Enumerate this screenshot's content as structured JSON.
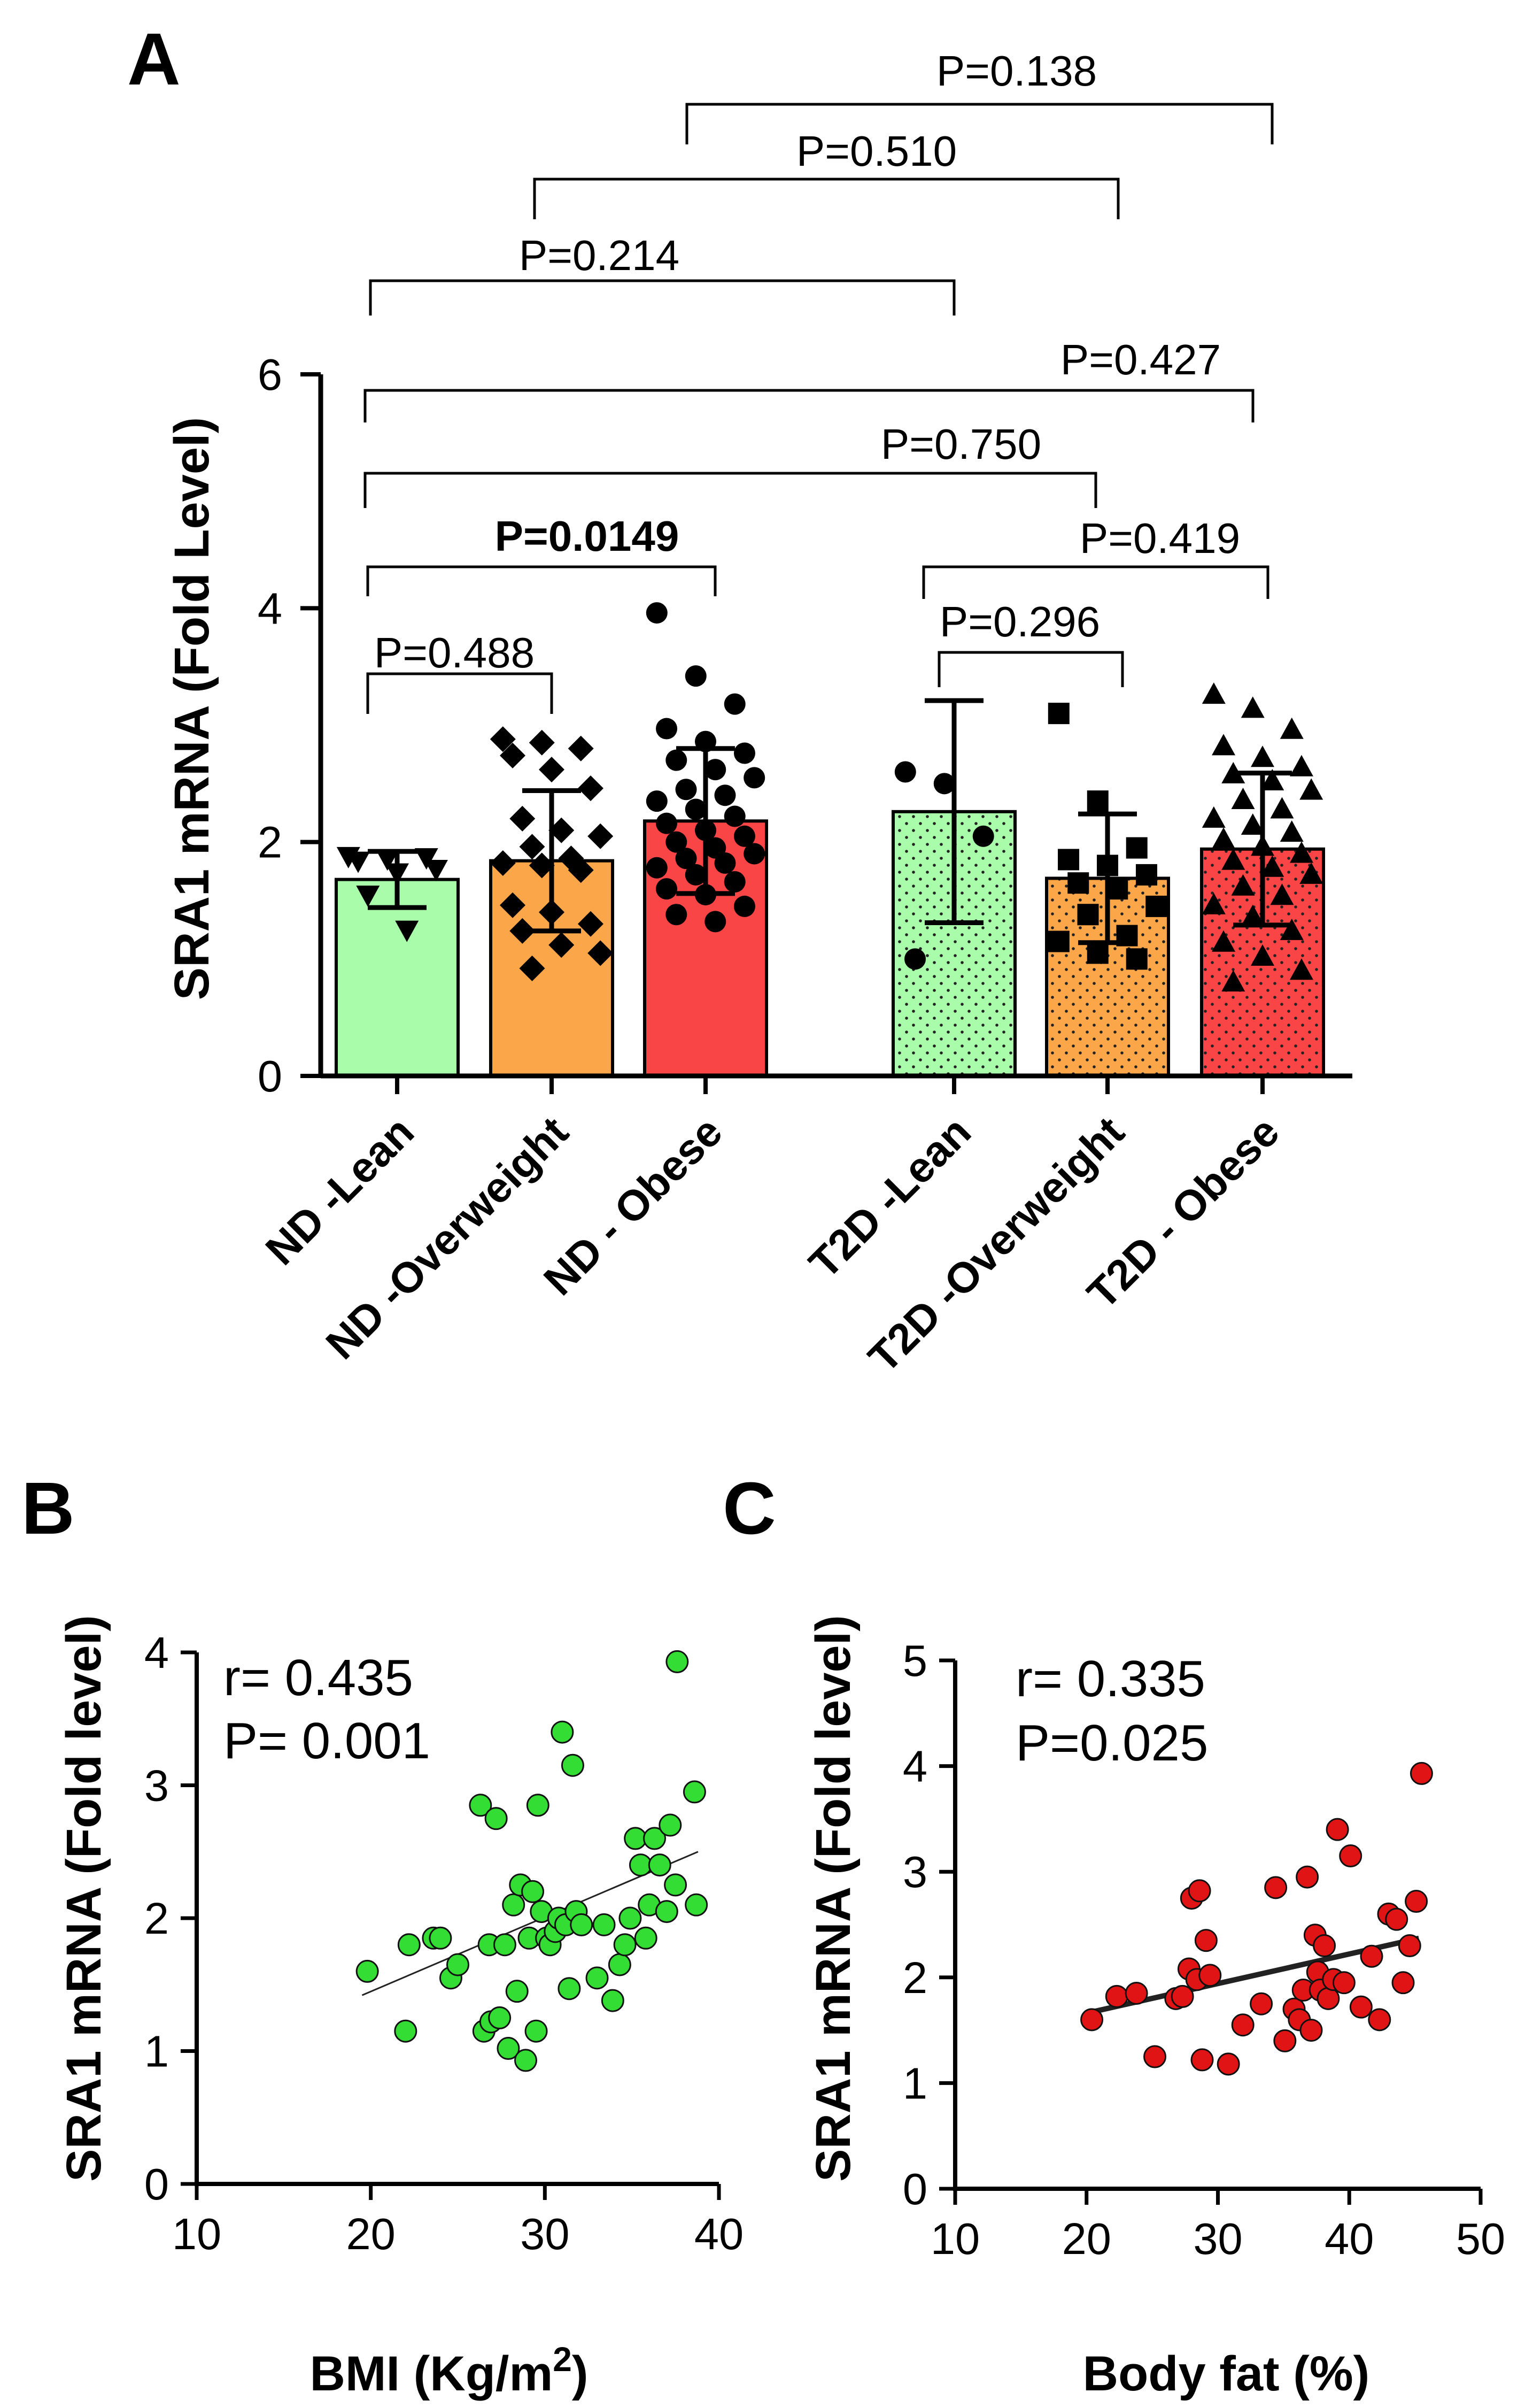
{
  "panels": {
    "a": "A",
    "b": "B",
    "c": "C"
  },
  "colors": {
    "lean": "#a9fca9",
    "overweight": "#fca64a",
    "obese": "#f94545",
    "green_dot": "#33dd33",
    "red_dot": "#e01414",
    "axis": "#000000"
  },
  "chart_data": [
    {
      "panel": "A",
      "type": "bar",
      "ylabel": "SRA1 mRNA (Fold Level)",
      "ylim": [
        0,
        6
      ],
      "yticks": [
        "0",
        "2",
        "4",
        "6"
      ],
      "categories": [
        "ND -Lean",
        "ND -Overweight",
        "ND - Obese",
        "T2D -Lean",
        "T2D -Overweight",
        "T2D - Obese"
      ],
      "bars": [
        {
          "name": "ND -Lean",
          "mean": 1.68,
          "sd": 0.24,
          "color": "lean",
          "pattern": "solid",
          "marker": "triangle-down",
          "points": [
            1.88,
            1.86,
            1.87,
            1.84,
            1.74,
            1.77,
            1.55,
            1.25
          ]
        },
        {
          "name": "ND -Overweight",
          "mean": 1.84,
          "sd": 0.6,
          "color": "overweight",
          "pattern": "solid",
          "marker": "diamond",
          "points": [
            2.88,
            2.85,
            2.8,
            2.74,
            2.62,
            2.46,
            2.2,
            2.1,
            2.05,
            1.96,
            1.86,
            1.82,
            1.8,
            1.76,
            1.46,
            1.4,
            1.3,
            1.24,
            1.12,
            1.05,
            0.92
          ]
        },
        {
          "name": "ND - Obese",
          "mean": 2.18,
          "sd": 0.62,
          "color": "obese",
          "pattern": "solid",
          "marker": "circle",
          "points": [
            3.96,
            3.42,
            3.18,
            2.97,
            2.86,
            2.76,
            2.7,
            2.62,
            2.55,
            2.45,
            2.4,
            2.35,
            2.28,
            2.22,
            2.16,
            2.1,
            2.05,
            2.0,
            1.95,
            1.9,
            1.86,
            1.82,
            1.78,
            1.72,
            1.66,
            1.6,
            1.55,
            1.45,
            1.38,
            1.32
          ]
        },
        {
          "name": "T2D -Lean",
          "mean": 2.26,
          "sd": 0.95,
          "color": "lean",
          "pattern": "dots",
          "marker": "circle",
          "points": [
            2.6,
            2.5,
            2.05,
            1.0
          ]
        },
        {
          "name": "T2D -Overweight",
          "mean": 1.69,
          "sd": 0.55,
          "color": "overweight",
          "pattern": "dots",
          "marker": "square",
          "points": [
            3.1,
            2.35,
            1.95,
            1.85,
            1.8,
            1.72,
            1.65,
            1.6,
            1.45,
            1.38,
            1.2,
            1.15,
            1.05,
            1.0
          ]
        },
        {
          "name": "T2D - Obese",
          "mean": 1.94,
          "sd": 0.65,
          "color": "obese",
          "pattern": "dots",
          "marker": "triangle",
          "points": [
            3.26,
            3.14,
            2.96,
            2.82,
            2.72,
            2.64,
            2.58,
            2.52,
            2.44,
            2.36,
            2.28,
            2.2,
            2.14,
            2.08,
            2.02,
            1.96,
            1.9,
            1.84,
            1.78,
            1.72,
            1.62,
            1.54,
            1.46,
            1.36,
            1.24,
            1.14,
            1.02,
            0.9,
            0.8
          ]
        }
      ],
      "comparisons": [
        {
          "from": 0,
          "to": 1,
          "label": "P=0.488",
          "bold": false
        },
        {
          "from": 0,
          "to": 2,
          "label": "P=0.0149",
          "bold": true
        },
        {
          "from": 3,
          "to": 4,
          "label": "P=0.296",
          "bold": false
        },
        {
          "from": 3,
          "to": 5,
          "label": "P=0.419",
          "bold": false
        },
        {
          "from": 0,
          "to": 4,
          "label": "P=0.750",
          "bold": false
        },
        {
          "from": 0,
          "to": 5,
          "label": "P=0.427",
          "bold": false
        },
        {
          "from": 0,
          "to": 3,
          "label": "P=0.214",
          "bold": false
        },
        {
          "from": 1,
          "to": 4,
          "label": "P=0.510",
          "bold": false
        },
        {
          "from": 2,
          "to": 5,
          "label": "P=0.138",
          "bold": false
        }
      ]
    },
    {
      "panel": "B",
      "type": "scatter",
      "xlabel": "BMI (Kg/m",
      "xlabel_sup": "2",
      "xlabel_end": ")",
      "ylabel": "SRA1 mRNA (Fold level)",
      "xlim": [
        10,
        40
      ],
      "ylim": [
        0,
        4
      ],
      "xticks": [
        "10",
        "20",
        "30",
        "40"
      ],
      "yticks": [
        "0",
        "1",
        "2",
        "3",
        "4"
      ],
      "r_label": "r= 0.435",
      "p_label": "P= 0.001",
      "trend": {
        "x": [
          19.5,
          38.8
        ],
        "y": [
          1.42,
          2.5
        ]
      },
      "x": [
        19.8,
        22.0,
        22.2,
        23.6,
        24.0,
        24.6,
        25.0,
        26.3,
        26.5,
        26.8,
        26.9,
        27.2,
        27.4,
        27.7,
        27.9,
        28.2,
        28.4,
        28.6,
        28.9,
        29.1,
        29.3,
        29.5,
        29.6,
        29.8,
        30.1,
        30.3,
        30.6,
        30.8,
        31.0,
        31.2,
        31.4,
        31.6,
        31.8,
        32.1,
        33.0,
        33.4,
        33.9,
        34.3,
        34.6,
        34.9,
        35.2,
        35.5,
        35.8,
        36.0,
        36.3,
        36.6,
        37.0,
        37.2,
        37.5,
        37.6,
        38.6,
        38.7
      ],
      "y": [
        1.6,
        1.15,
        1.8,
        1.85,
        1.85,
        1.55,
        1.65,
        2.85,
        1.15,
        1.8,
        1.22,
        2.75,
        1.25,
        1.8,
        1.02,
        2.1,
        1.45,
        2.25,
        0.93,
        1.85,
        2.2,
        1.15,
        2.85,
        2.05,
        1.85,
        1.8,
        1.9,
        2.0,
        3.4,
        1.95,
        1.47,
        3.15,
        2.05,
        1.95,
        1.55,
        1.95,
        1.38,
        1.65,
        1.8,
        2.0,
        2.6,
        2.4,
        1.85,
        2.1,
        2.6,
        2.4,
        2.05,
        2.7,
        2.25,
        3.93,
        2.95,
        2.1
      ]
    },
    {
      "panel": "C",
      "type": "scatter",
      "xlabel": "Body fat (%)",
      "ylabel": "SRA1 mRNA (Fold level)",
      "xlim": [
        10,
        50
      ],
      "ylim": [
        0,
        5
      ],
      "xticks": [
        "10",
        "20",
        "30",
        "40",
        "50"
      ],
      "yticks": [
        "0",
        "1",
        "2",
        "3",
        "4",
        "5"
      ],
      "r_label": "r= 0.335",
      "p_label": "P=0.025",
      "trend": {
        "x": [
          20.3,
          45.3
        ],
        "y": [
          1.67,
          2.37
        ]
      },
      "x": [
        20.4,
        22.3,
        23.8,
        25.2,
        26.8,
        27.3,
        27.8,
        28.0,
        28.4,
        28.6,
        28.8,
        29.1,
        29.4,
        30.8,
        31.9,
        33.3,
        34.4,
        35.1,
        35.8,
        36.2,
        36.5,
        36.8,
        37.1,
        37.4,
        37.6,
        37.8,
        38.1,
        38.4,
        38.8,
        39.1,
        39.6,
        40.1,
        40.9,
        41.7,
        42.3,
        43.0,
        43.6,
        44.1,
        44.6,
        45.1,
        45.5
      ],
      "y": [
        1.6,
        1.82,
        1.85,
        1.25,
        1.8,
        1.82,
        2.08,
        2.75,
        1.98,
        2.82,
        1.22,
        2.35,
        2.02,
        1.18,
        1.55,
        1.75,
        2.85,
        1.4,
        1.7,
        1.6,
        1.88,
        2.95,
        1.5,
        2.4,
        2.05,
        1.88,
        2.3,
        1.8,
        1.98,
        3.4,
        1.95,
        3.15,
        1.72,
        2.2,
        1.6,
        2.6,
        2.55,
        1.95,
        2.3,
        2.72,
        3.93
      ]
    }
  ]
}
